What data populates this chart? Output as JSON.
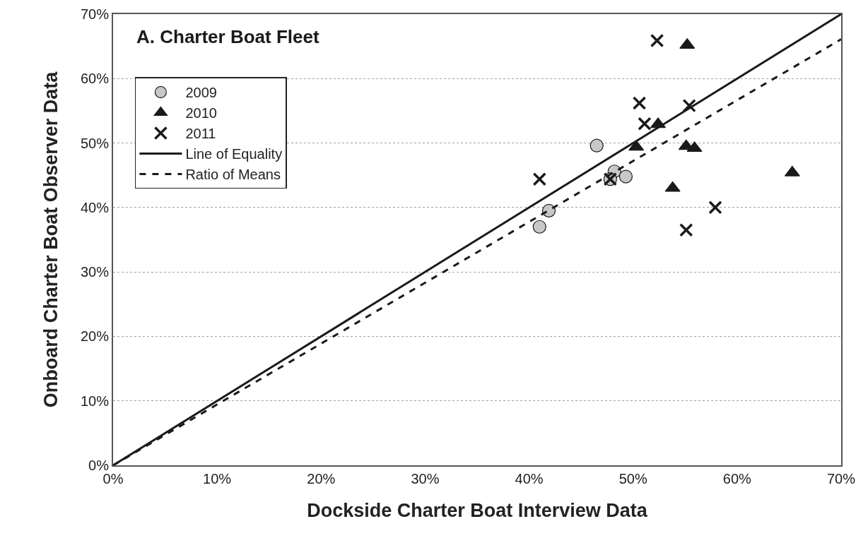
{
  "chart_data": {
    "type": "scatter",
    "xlabel": "Dockside Charter Boat Interview Data",
    "ylabel": "Onboard Charter Boat Observer Data",
    "annotations": [
      "A. Charter Boat Fleet"
    ],
    "xlim": [
      0,
      70
    ],
    "ylim": [
      0,
      70
    ],
    "xticks": [
      {
        "value": 0,
        "label": "0%"
      },
      {
        "value": 10,
        "label": "10%"
      },
      {
        "value": 20,
        "label": "20%"
      },
      {
        "value": 30,
        "label": "30%"
      },
      {
        "value": 40,
        "label": "40%"
      },
      {
        "value": 50,
        "label": "50%"
      },
      {
        "value": 60,
        "label": "60%"
      },
      {
        "value": 70,
        "label": "70%"
      }
    ],
    "yticks": [
      {
        "value": 0,
        "label": "0%"
      },
      {
        "value": 10,
        "label": "10%"
      },
      {
        "value": 20,
        "label": "20%"
      },
      {
        "value": 30,
        "label": "30%"
      },
      {
        "value": 40,
        "label": "40%"
      },
      {
        "value": 50,
        "label": "50%"
      },
      {
        "value": 60,
        "label": "60%"
      },
      {
        "value": 70,
        "label": "70%"
      }
    ],
    "grid": "y",
    "legend": "top left",
    "series": [
      {
        "name": "2009",
        "marker": "circle",
        "color": "#c8c8c8",
        "x": [
          41.0,
          41.9,
          46.5,
          48.2,
          47.8,
          49.3
        ],
        "values": [
          37.0,
          39.5,
          49.6,
          45.6,
          44.4,
          44.8
        ]
      },
      {
        "name": "2010",
        "marker": "triangle",
        "color": "#1a1a1a",
        "x": [
          55.2,
          52.4,
          50.3,
          55.1,
          55.9,
          53.8,
          65.3
        ],
        "values": [
          65.2,
          52.9,
          49.4,
          49.5,
          49.2,
          43.0,
          45.4
        ]
      },
      {
        "name": "2011",
        "marker": "cross",
        "color": "#1a1a1a",
        "x": [
          52.3,
          50.6,
          55.4,
          51.1,
          41.0,
          47.8,
          57.9,
          55.1
        ],
        "values": [
          65.9,
          56.2,
          55.8,
          53.0,
          44.4,
          44.4,
          40.0,
          36.5
        ]
      },
      {
        "name": "Line of Equality",
        "type": "line",
        "marker": "none",
        "line_style": "solid",
        "color": "#1a1a1a",
        "x": [
          0,
          70
        ],
        "values": [
          0,
          70
        ]
      },
      {
        "name": "Ratio of Means",
        "type": "line",
        "marker": "none",
        "line_style": "dashed",
        "color": "#1a1a1a",
        "x": [
          0,
          70
        ],
        "values": [
          0,
          66.1
        ]
      }
    ]
  }
}
